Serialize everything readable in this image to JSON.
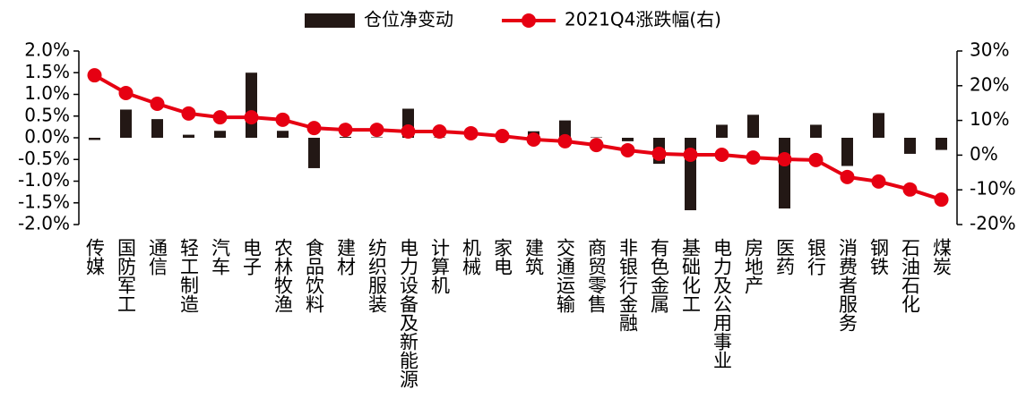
{
  "chart_data": {
    "type": "bar",
    "categories": [
      "传媒",
      "国防军工",
      "通信",
      "轻工制造",
      "汽车",
      "电子",
      "农林牧渔",
      "食品饮料",
      "建材",
      "纺织服装",
      "电力设备及新能源",
      "计算机",
      "机械",
      "家电",
      "建筑",
      "交通运输",
      "商贸零售",
      "非银行金融",
      "有色金属",
      "基础化工",
      "电力及公用事业",
      "房地产",
      "医药",
      "银行",
      "消费者服务",
      "钢铁",
      "石油石化",
      "煤炭"
    ],
    "series": [
      {
        "name": "仓位净变动",
        "type": "bar",
        "color": "#231815",
        "values": [
          -0.05,
          0.65,
          0.43,
          0.07,
          0.16,
          1.5,
          0.16,
          -0.7,
          0.02,
          0.01,
          0.67,
          0.01,
          0.01,
          0.01,
          0.15,
          0.4,
          0.01,
          -0.08,
          -0.6,
          -1.67,
          0.3,
          0.53,
          -1.63,
          0.3,
          -0.65,
          0.57,
          -0.37,
          -0.28
        ]
      },
      {
        "name": "2021Q4涨跌幅(右)",
        "type": "line",
        "axis": "y2",
        "color": "#e60012",
        "values": [
          23.0,
          17.9,
          14.8,
          12.0,
          10.9,
          10.9,
          10.2,
          7.8,
          7.3,
          7.3,
          6.8,
          6.8,
          6.3,
          5.5,
          4.5,
          4.0,
          2.9,
          1.4,
          0.4,
          0.1,
          0.1,
          -0.7,
          -1.2,
          -1.4,
          -6.3,
          -7.6,
          -9.9,
          -12.8
        ]
      }
    ],
    "ylim": [
      -2.0,
      2.0
    ],
    "yticks": [
      {
        "value": -2.0,
        "label": "-2.0%"
      },
      {
        "value": -1.5,
        "label": "-1.5%"
      },
      {
        "value": -1.0,
        "label": "-1.0%"
      },
      {
        "value": -0.5,
        "label": "-0.5%"
      },
      {
        "value": 0,
        "label": "0.0%"
      },
      {
        "value": 0.5,
        "label": "0.5%"
      },
      {
        "value": 1.0,
        "label": "1.0%"
      },
      {
        "value": 1.5,
        "label": "1.5%"
      },
      {
        "value": 2.0,
        "label": "2.0%"
      }
    ],
    "y2lim": [
      -20,
      30
    ],
    "y2ticks": [
      {
        "value": -20,
        "label": "-20%"
      },
      {
        "value": -10,
        "label": "-10%"
      },
      {
        "value": 0,
        "label": "0%"
      },
      {
        "value": 10,
        "label": "10%"
      },
      {
        "value": 20,
        "label": "20%"
      },
      {
        "value": 30,
        "label": "30%"
      }
    ],
    "legend": "top",
    "grid": false
  }
}
